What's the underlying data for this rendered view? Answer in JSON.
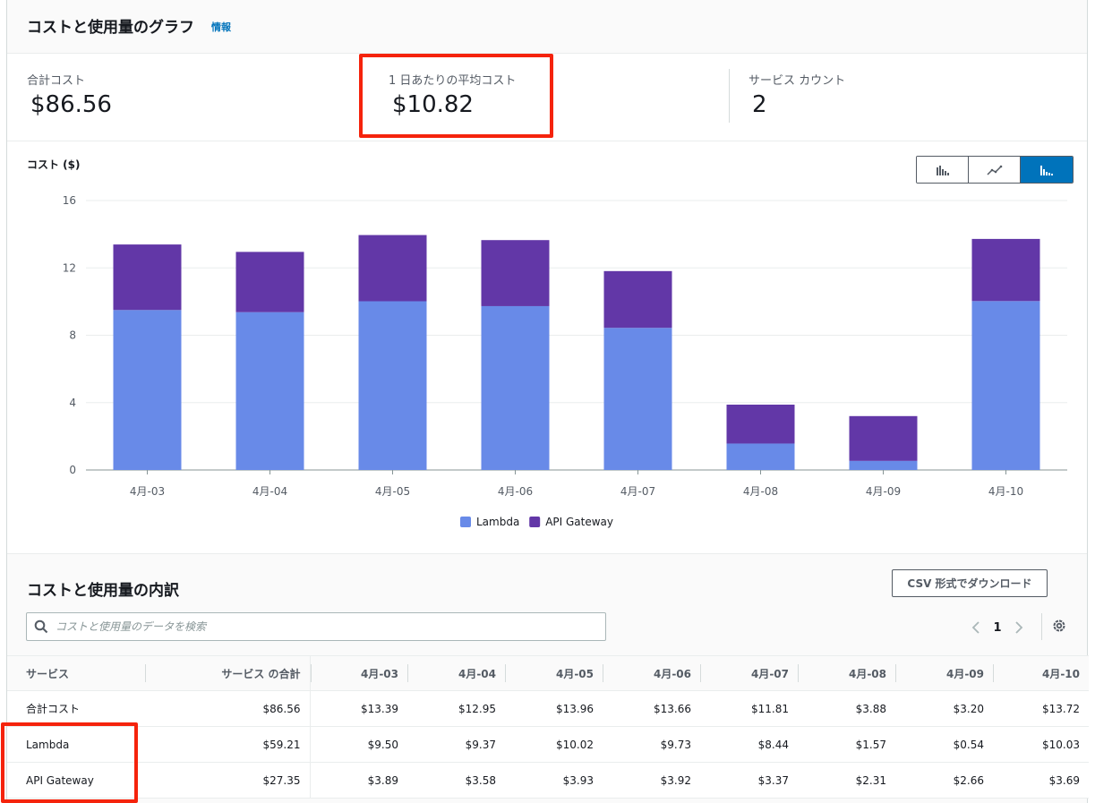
{
  "header": {
    "title": "コストと使用量のグラフ",
    "info_link": "情報"
  },
  "summary": {
    "total_cost": {
      "label": "合計コスト",
      "value": "$86.56"
    },
    "daily_avg": {
      "label": "1 日あたりの平均コスト",
      "value": "$10.82"
    },
    "service_count": {
      "label": "サービス カウント",
      "value": "2"
    }
  },
  "chart_controls": {
    "buttons": [
      {
        "name": "bar-chart",
        "active": false
      },
      {
        "name": "line-chart",
        "active": false
      },
      {
        "name": "stacked-bar-chart",
        "active": true
      }
    ]
  },
  "chart_data": {
    "type": "bar",
    "stacked": true,
    "title": "",
    "ylabel": "コスト ($)",
    "xlabel": "",
    "ylim": [
      0,
      16
    ],
    "yticks": [
      0,
      4,
      8,
      12,
      16
    ],
    "grid": true,
    "legend_position": "bottom-center",
    "categories": [
      "4月-03",
      "4月-04",
      "4月-05",
      "4月-06",
      "4月-07",
      "4月-08",
      "4月-09",
      "4月-10"
    ],
    "series": [
      {
        "name": "Lambda",
        "color": "#688ae8",
        "values": [
          9.5,
          9.37,
          10.02,
          9.73,
          8.44,
          1.57,
          0.54,
          10.03
        ]
      },
      {
        "name": "API Gateway",
        "color": "#6237a7",
        "values": [
          3.89,
          3.58,
          3.93,
          3.92,
          3.37,
          2.31,
          2.66,
          3.69
        ]
      }
    ]
  },
  "breakdown": {
    "title": "コストと使用量の内訳",
    "csv_button": "CSV 形式でダウンロード",
    "search_placeholder": "コストと使用量のデータを検索",
    "page": "1",
    "columns": [
      "サービス",
      "サービス の合計",
      "4月-03",
      "4月-04",
      "4月-05",
      "4月-06",
      "4月-07",
      "4月-08",
      "4月-09",
      "4月-10"
    ],
    "rows": [
      [
        "合計コスト",
        "$86.56",
        "$13.39",
        "$12.95",
        "$13.96",
        "$13.66",
        "$11.81",
        "$3.88",
        "$3.20",
        "$13.72"
      ],
      [
        "Lambda",
        "$59.21",
        "$9.50",
        "$9.37",
        "$10.02",
        "$9.73",
        "$8.44",
        "$1.57",
        "$0.54",
        "$10.03"
      ],
      [
        "API Gateway",
        "$27.35",
        "$3.89",
        "$3.58",
        "$3.93",
        "$3.92",
        "$3.37",
        "$2.31",
        "$2.66",
        "$3.69"
      ]
    ]
  },
  "colors": {
    "highlight": "#f5230c",
    "accent": "#0073bb"
  }
}
